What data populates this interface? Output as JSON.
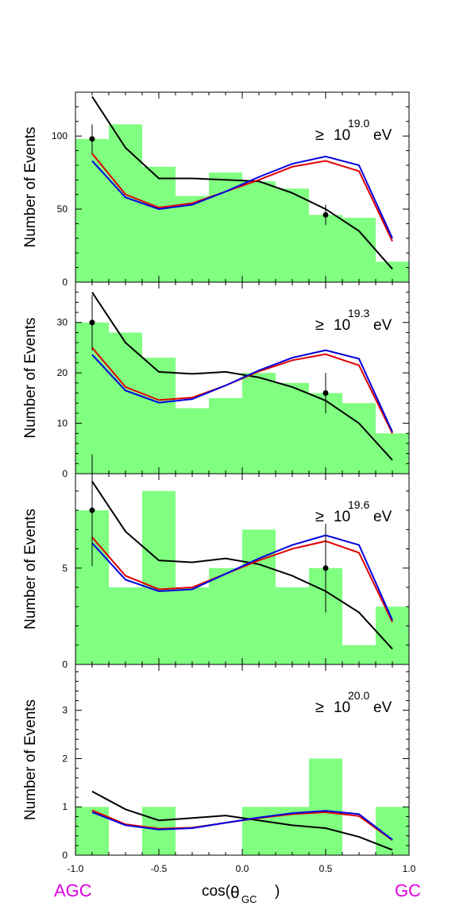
{
  "colors": {
    "histogram_fill": "#80ff80",
    "frame": "#000000",
    "black_curve": "#000000",
    "red_curve": "#e00000",
    "blue_curve": "#0000e0",
    "end_labels": "#e000e0"
  },
  "x_axis": {
    "label_prefix": "cos(",
    "theta_symbol": "θ",
    "theta_subscript": "GC",
    "label_suffix": ")",
    "ticks": [
      "-1.0",
      "-0.5",
      "0.0",
      "0.5",
      "1.0"
    ],
    "left_end_label": "AGC",
    "right_end_label": "GC"
  },
  "chart_data": [
    {
      "type": "bar",
      "ylabel": "Number of Events",
      "threshold": {
        "geq_symbol": "≥",
        "base": "10",
        "exponent": "19.0",
        "unit": "eV"
      },
      "xlim": [
        -1.0,
        1.0
      ],
      "ylim": [
        0,
        130
      ],
      "yticks": [
        0,
        50,
        100
      ],
      "ytick_labels": [
        "0",
        "50",
        "100"
      ],
      "bin_edges": [
        -1.0,
        -0.8,
        -0.6,
        -0.4,
        -0.2,
        0.0,
        0.2,
        0.4,
        0.6,
        0.8,
        1.0
      ],
      "histogram": [
        98,
        108,
        79,
        59,
        75,
        69,
        64,
        46,
        44,
        14
      ],
      "points": [
        {
          "x": -0.9,
          "y": 98,
          "err": 10
        },
        {
          "x": 0.5,
          "y": 46,
          "err": 7
        }
      ],
      "curve_x": [
        -0.9,
        -0.7,
        -0.5,
        -0.3,
        -0.1,
        0.1,
        0.3,
        0.5,
        0.7,
        0.9
      ],
      "series": [
        {
          "color": "black",
          "values": [
            127,
            92,
            71,
            71,
            70,
            69,
            61,
            50,
            35,
            9
          ]
        },
        {
          "color": "red",
          "values": [
            88,
            60,
            51,
            54,
            62,
            70,
            79,
            83,
            76,
            28
          ]
        },
        {
          "color": "blue",
          "values": [
            83,
            58,
            50,
            53,
            62,
            72,
            81,
            86,
            80,
            30
          ]
        }
      ]
    },
    {
      "type": "bar",
      "ylabel": "Number of Events",
      "threshold": {
        "geq_symbol": "≥",
        "base": "10",
        "exponent": "19.3",
        "unit": "eV"
      },
      "xlim": [
        -1.0,
        1.0
      ],
      "ylim": [
        0,
        38
      ],
      "yticks": [
        0,
        10,
        20,
        30
      ],
      "ytick_labels": [
        "0",
        "10",
        "20",
        "30"
      ],
      "bin_edges": [
        -1.0,
        -0.8,
        -0.6,
        -0.4,
        -0.2,
        0.0,
        0.2,
        0.4,
        0.6,
        0.8,
        1.0
      ],
      "histogram": [
        30,
        28,
        23,
        13,
        15,
        20,
        18,
        16,
        14,
        8
      ],
      "points": [
        {
          "x": -0.9,
          "y": 30,
          "err": 5.5
        },
        {
          "x": 0.5,
          "y": 16,
          "err": 4
        }
      ],
      "curve_x": [
        -0.9,
        -0.7,
        -0.5,
        -0.3,
        -0.1,
        0.1,
        0.3,
        0.5,
        0.7,
        0.9
      ],
      "series": [
        {
          "color": "black",
          "values": [
            36,
            26,
            20.2,
            19.8,
            20.2,
            19.1,
            17.2,
            14.5,
            10,
            2.7
          ]
        },
        {
          "color": "red",
          "values": [
            25,
            17.2,
            14.6,
            15.1,
            17.5,
            20.3,
            22.5,
            23.7,
            21.5,
            8
          ]
        },
        {
          "color": "blue",
          "values": [
            23.6,
            16.5,
            14.1,
            14.8,
            17.5,
            20.5,
            23,
            24.5,
            22.8,
            8.3
          ]
        }
      ]
    },
    {
      "type": "bar",
      "ylabel": "Number of Events",
      "threshold": {
        "geq_symbol": "≥",
        "base": "10",
        "exponent": "19.6",
        "unit": "eV"
      },
      "xlim": [
        -1.0,
        1.0
      ],
      "ylim": [
        0,
        9.9
      ],
      "yticks": [
        0,
        5
      ],
      "ytick_labels": [
        "0",
        "5"
      ],
      "bin_edges": [
        -1.0,
        -0.8,
        -0.6,
        -0.4,
        -0.2,
        0.0,
        0.2,
        0.4,
        0.6,
        0.8,
        1.0
      ],
      "histogram": [
        8,
        4,
        9,
        4,
        5,
        7,
        4,
        5,
        1,
        3
      ],
      "points": [
        {
          "x": -0.9,
          "y": 8,
          "err": 2.9
        },
        {
          "x": 0.5,
          "y": 5,
          "err": 2.3
        }
      ],
      "curve_x": [
        -0.9,
        -0.7,
        -0.5,
        -0.3,
        -0.1,
        0.1,
        0.3,
        0.5,
        0.7,
        0.9
      ],
      "series": [
        {
          "color": "black",
          "values": [
            9.5,
            6.9,
            5.4,
            5.3,
            5.5,
            5.2,
            4.6,
            3.8,
            2.7,
            0.8
          ]
        },
        {
          "color": "red",
          "values": [
            6.6,
            4.6,
            3.9,
            4.0,
            4.7,
            5.4,
            6.0,
            6.4,
            5.8,
            2.2
          ]
        },
        {
          "color": "blue",
          "values": [
            6.3,
            4.4,
            3.8,
            3.9,
            4.7,
            5.5,
            6.2,
            6.7,
            6.2,
            2.3
          ]
        }
      ]
    },
    {
      "type": "bar",
      "ylabel": "Number of Events",
      "threshold": {
        "geq_symbol": "≥",
        "base": "10",
        "exponent": "20.0",
        "unit": "eV"
      },
      "xlim": [
        -1.0,
        1.0
      ],
      "ylim": [
        0,
        3.95
      ],
      "yticks": [
        0,
        1,
        2,
        3
      ],
      "ytick_labels": [
        "0",
        "1",
        "2",
        "3"
      ],
      "bin_edges": [
        -1.0,
        -0.8,
        -0.6,
        -0.4,
        -0.2,
        0.0,
        0.2,
        0.4,
        0.6,
        0.8,
        1.0
      ],
      "histogram": [
        1,
        0,
        1,
        0,
        0,
        1,
        1,
        2,
        0,
        1
      ],
      "points": [],
      "curve_x": [
        -0.9,
        -0.7,
        -0.5,
        -0.3,
        -0.1,
        0.1,
        0.3,
        0.5,
        0.7,
        0.9
      ],
      "series": [
        {
          "color": "black",
          "values": [
            1.32,
            0.95,
            0.72,
            0.77,
            0.82,
            0.72,
            0.62,
            0.56,
            0.38,
            0.11
          ]
        },
        {
          "color": "red",
          "values": [
            0.93,
            0.64,
            0.55,
            0.57,
            0.67,
            0.77,
            0.85,
            0.89,
            0.81,
            0.31
          ]
        },
        {
          "color": "blue",
          "values": [
            0.89,
            0.62,
            0.53,
            0.56,
            0.67,
            0.78,
            0.87,
            0.92,
            0.85,
            0.32
          ]
        }
      ]
    }
  ]
}
